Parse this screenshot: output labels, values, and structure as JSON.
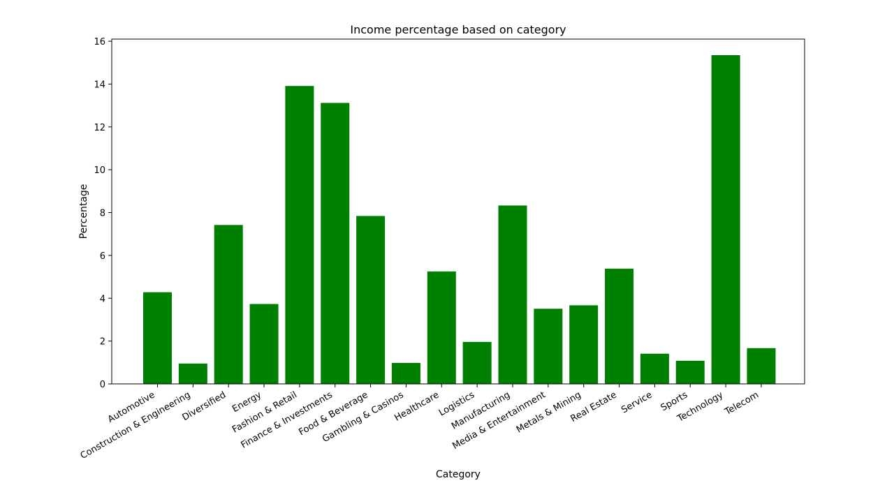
{
  "chart_data": {
    "type": "bar",
    "title": "Income percentage based on category",
    "xlabel": "Category",
    "ylabel": "Percentage",
    "categories": [
      "Automotive",
      "Construction & Engineering",
      "Diversified",
      "Energy",
      "Fashion & Retail",
      "Finance & Investments",
      "Food & Beverage",
      "Gambling & Casinos",
      "Healthcare",
      "Logistics",
      "Manufacturing",
      "Media & Entertainment",
      "Metals & Mining",
      "Real Estate",
      "Service",
      "Sports",
      "Technology",
      "Telecom"
    ],
    "values": [
      4.28,
      0.95,
      7.42,
      3.73,
      13.91,
      13.12,
      7.84,
      0.98,
      5.25,
      1.96,
      8.33,
      3.51,
      3.67,
      5.38,
      1.41,
      1.08,
      15.35,
      1.67
    ],
    "ylim": [
      0,
      16.1
    ],
    "yticks": [
      0,
      2,
      4,
      6,
      8,
      10,
      12,
      14,
      16
    ],
    "bar_color": "#008000",
    "grid": false,
    "legend": "none"
  }
}
